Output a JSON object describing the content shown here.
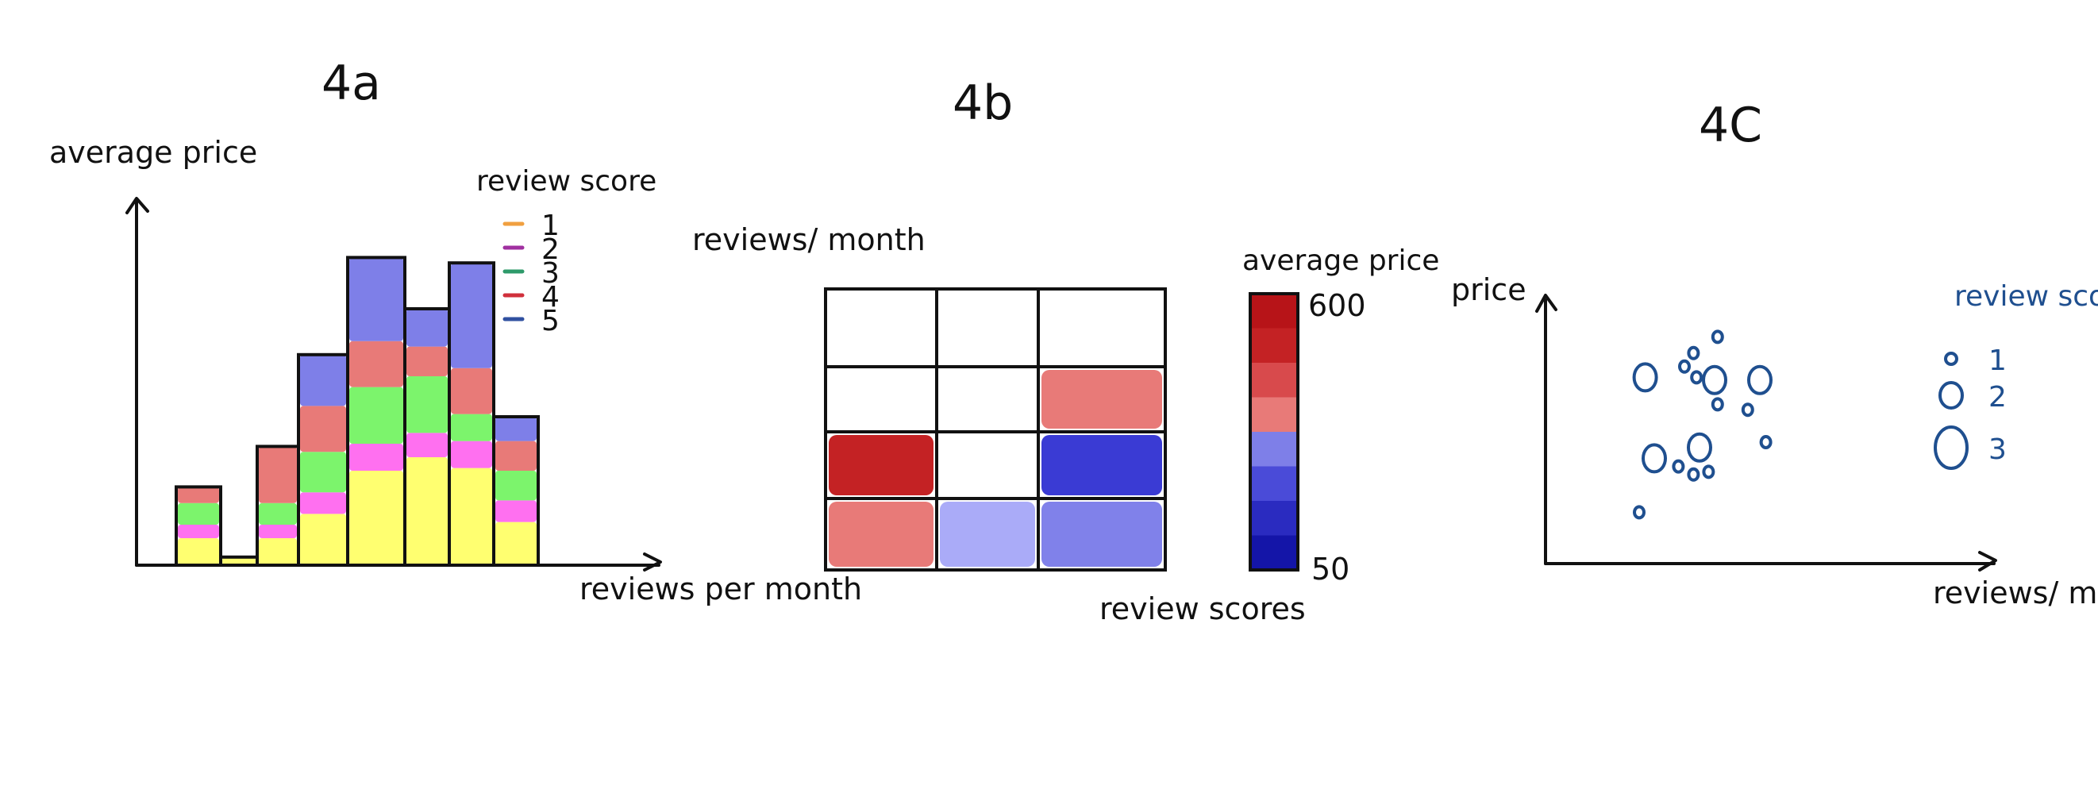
{
  "chart_data": [
    {
      "type": "bar",
      "title": "4a",
      "xlabel": "reviews per month",
      "ylabel": "average price",
      "legend_title": "review score",
      "series": [
        {
          "name": "1",
          "color": "#ffff70",
          "values": [
            1.0,
            0.3,
            1.0,
            1.9,
            3.5,
            4.0,
            3.6,
            1.6
          ]
        },
        {
          "name": "2",
          "color": "#ff70f0",
          "values": [
            0.5,
            0,
            0.5,
            0.8,
            1.0,
            0.9,
            1.0,
            0.8
          ]
        },
        {
          "name": "3",
          "color": "#7cf46c",
          "values": [
            0.8,
            0,
            0.8,
            1.5,
            2.1,
            2.1,
            1.0,
            1.1
          ]
        },
        {
          "name": "4",
          "color": "#e87a78",
          "values": [
            0.6,
            0,
            2.1,
            1.7,
            1.7,
            1.1,
            1.7,
            1.1
          ]
        },
        {
          "name": "5",
          "color": "#7e7fe8",
          "values": [
            0,
            0,
            0,
            1.9,
            3.1,
            1.4,
            3.9,
            0.9
          ]
        }
      ],
      "legend_marker_colors": [
        "#f0a040",
        "#a030a0",
        "#2e9a6a",
        "#d0303c",
        "#3050a0"
      ],
      "legend": "top-right"
    },
    {
      "type": "heatmap",
      "title": "4b",
      "xlabel": "review scores",
      "ylabel": "reviews/ month",
      "colorbar_label": "average price",
      "colorbar_ticks": [
        "600",
        "50"
      ],
      "colorbar_range": [
        50,
        600
      ],
      "rows": 4,
      "cols": 3,
      "cells": [
        {
          "row": 1,
          "col": 2,
          "color": "#e87a78"
        },
        {
          "row": 2,
          "col": 0,
          "color": "#c42224"
        },
        {
          "row": 2,
          "col": 2,
          "color": "#3a3bd4"
        },
        {
          "row": 3,
          "col": 0,
          "color": "#e87a78"
        },
        {
          "row": 3,
          "col": 1,
          "color": "#aaabf8"
        },
        {
          "row": 3,
          "col": 2,
          "color": "#8081ea"
        }
      ],
      "colorbar_colors": [
        "#b71418",
        "#c42224",
        "#d84a4c",
        "#e87a78",
        "#7e7fe8",
        "#4a4bd8",
        "#2a2bc0",
        "#1415a8"
      ]
    },
    {
      "type": "scatter",
      "title": "4C",
      "xlabel": "reviews/ month",
      "ylabel": "price",
      "legend_title": "review score",
      "legend_entries": [
        "1",
        "2",
        "3"
      ],
      "point_color": "#1f4f8f",
      "points": [
        {
          "x": 1.2,
          "y": 6.9,
          "size": 2
        },
        {
          "x": 2.5,
          "y": 7.3,
          "size": 1
        },
        {
          "x": 3.6,
          "y": 8.4,
          "size": 1
        },
        {
          "x": 2.9,
          "y": 6.9,
          "size": 1
        },
        {
          "x": 3.5,
          "y": 6.8,
          "size": 2
        },
        {
          "x": 5.0,
          "y": 6.8,
          "size": 2
        },
        {
          "x": 3.6,
          "y": 5.9,
          "size": 1
        },
        {
          "x": 4.6,
          "y": 5.7,
          "size": 1
        },
        {
          "x": 5.2,
          "y": 4.5,
          "size": 1
        },
        {
          "x": 1.5,
          "y": 3.9,
          "size": 2
        },
        {
          "x": 3.0,
          "y": 4.3,
          "size": 2
        },
        {
          "x": 2.3,
          "y": 3.6,
          "size": 1
        },
        {
          "x": 2.8,
          "y": 3.3,
          "size": 1
        },
        {
          "x": 3.3,
          "y": 3.4,
          "size": 1
        },
        {
          "x": 1.0,
          "y": 1.9,
          "size": 1
        },
        {
          "x": 2.8,
          "y": 7.8,
          "size": 1
        }
      ]
    }
  ]
}
